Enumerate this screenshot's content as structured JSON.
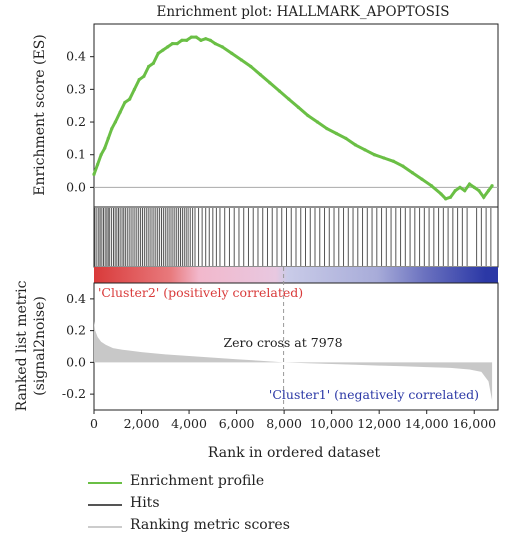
{
  "chart_data": {
    "type": "line",
    "title": "Enrichment plot: HALLMARK_APOPTOSIS",
    "xlabel": "Rank in ordered dataset",
    "xlim": [
      0,
      17000
    ],
    "xticks": [
      0,
      2000,
      4000,
      6000,
      8000,
      10000,
      12000,
      14000,
      16000
    ],
    "xtick_labels": [
      "0",
      "2,000",
      "4,000",
      "6,000",
      "8,000",
      "10,000",
      "12,000",
      "14,000",
      "16,000"
    ],
    "es_panel": {
      "ylabel": "Enrichment score (ES)",
      "ylim": [
        -0.06,
        0.5
      ],
      "yticks": [
        0.0,
        0.1,
        0.2,
        0.3,
        0.4
      ],
      "ytick_labels": [
        "0.0",
        "0.1",
        "0.2",
        "0.3",
        "0.4"
      ],
      "series": [
        {
          "name": "Enrichment profile",
          "color": "#6abf45",
          "x": [
            0,
            150,
            300,
            450,
            600,
            750,
            900,
            1100,
            1300,
            1500,
            1700,
            1900,
            2100,
            2300,
            2500,
            2700,
            2900,
            3100,
            3300,
            3500,
            3700,
            3900,
            4100,
            4300,
            4500,
            4700,
            4900,
            5100,
            5400,
            5800,
            6200,
            6600,
            7000,
            7400,
            7800,
            8200,
            8600,
            9000,
            9400,
            9800,
            10200,
            10600,
            11000,
            11400,
            11800,
            12200,
            12600,
            13000,
            13400,
            13800,
            14200,
            14600,
            14800,
            15000,
            15200,
            15400,
            15600,
            15800,
            16000,
            16200,
            16400,
            16600,
            16750
          ],
          "values": [
            0.04,
            0.07,
            0.1,
            0.12,
            0.15,
            0.18,
            0.2,
            0.23,
            0.26,
            0.27,
            0.3,
            0.33,
            0.34,
            0.37,
            0.38,
            0.41,
            0.42,
            0.43,
            0.44,
            0.44,
            0.45,
            0.45,
            0.46,
            0.46,
            0.45,
            0.455,
            0.45,
            0.44,
            0.43,
            0.41,
            0.39,
            0.37,
            0.345,
            0.32,
            0.295,
            0.27,
            0.245,
            0.22,
            0.2,
            0.18,
            0.165,
            0.15,
            0.13,
            0.115,
            0.1,
            0.09,
            0.08,
            0.065,
            0.045,
            0.025,
            0.005,
            -0.02,
            -0.035,
            -0.03,
            -0.01,
            0.0,
            -0.01,
            0.01,
            0.0,
            -0.01,
            -0.03,
            -0.01,
            0.005
          ]
        }
      ]
    },
    "hits_panel": {
      "series": [
        {
          "name": "Hits",
          "color": "#555555",
          "x": [
            40,
            120,
            200,
            260,
            330,
            400,
            470,
            540,
            600,
            660,
            740,
            820,
            890,
            960,
            1030,
            1100,
            1180,
            1250,
            1320,
            1400,
            1480,
            1560,
            1640,
            1720,
            1800,
            1880,
            1960,
            2040,
            2120,
            2200,
            2280,
            2360,
            2440,
            2520,
            2600,
            2680,
            2760,
            2840,
            2920,
            3000,
            3080,
            3160,
            3240,
            3320,
            3400,
            3480,
            3560,
            3640,
            3720,
            3800,
            3880,
            3960,
            4050,
            4150,
            4250,
            4400,
            4550,
            4700,
            4850,
            5000,
            5150,
            5300,
            5500,
            5700,
            5900,
            6100,
            6300,
            6500,
            6700,
            6900,
            7100,
            7300,
            7500,
            7700,
            7900,
            8100,
            8300,
            8500,
            8700,
            8900,
            9100,
            9300,
            9500,
            9700,
            9900,
            10100,
            10300,
            10500,
            10700,
            10900,
            11100,
            11300,
            11500,
            11700,
            11900,
            12100,
            12300,
            12500,
            12700,
            12900,
            13100,
            13300,
            13500,
            13700,
            13900,
            14100,
            14300,
            14500,
            14700,
            14900,
            15100,
            15300,
            15500,
            15700,
            16100,
            16300,
            16500,
            16700
          ]
        }
      ]
    },
    "colorbar": {
      "positive_label": "'Cluster2' (positively correlated)",
      "negative_label": "'Cluster1' (negatively correlated)",
      "positive_color": "#d93a3a",
      "negative_color": "#2b38a6"
    },
    "metric_panel": {
      "ylabel": "Ranked list metric (signal2noise)",
      "ylim": [
        -0.3,
        0.5
      ],
      "yticks": [
        -0.2,
        0.0,
        0.2,
        0.4
      ],
      "ytick_labels": [
        "-0.2",
        "0.0",
        "0.2",
        "0.4"
      ],
      "zero_cross_label": "Zero cross at 7978",
      "zero_cross": 7978,
      "series": [
        {
          "name": "Ranking metric scores",
          "color": "#c8c8c8",
          "x": [
            0,
            50,
            150,
            300,
            500,
            800,
            1200,
            2000,
            3000,
            4000,
            5000,
            6000,
            7000,
            7978,
            9000,
            10000,
            11000,
            12000,
            13000,
            14000,
            15000,
            15800,
            16300,
            16600,
            16750
          ],
          "values": [
            0.26,
            0.2,
            0.16,
            0.13,
            0.11,
            0.09,
            0.08,
            0.065,
            0.05,
            0.04,
            0.03,
            0.02,
            0.01,
            0.0,
            -0.005,
            -0.01,
            -0.015,
            -0.02,
            -0.025,
            -0.03,
            -0.035,
            -0.045,
            -0.06,
            -0.12,
            -0.24
          ]
        }
      ]
    }
  },
  "legend": {
    "items": [
      {
        "label": "Enrichment profile",
        "color": "#6abf45"
      },
      {
        "label": "Hits",
        "color": "#555555"
      },
      {
        "label": "Ranking metric scores",
        "color": "#cccccc"
      }
    ]
  }
}
